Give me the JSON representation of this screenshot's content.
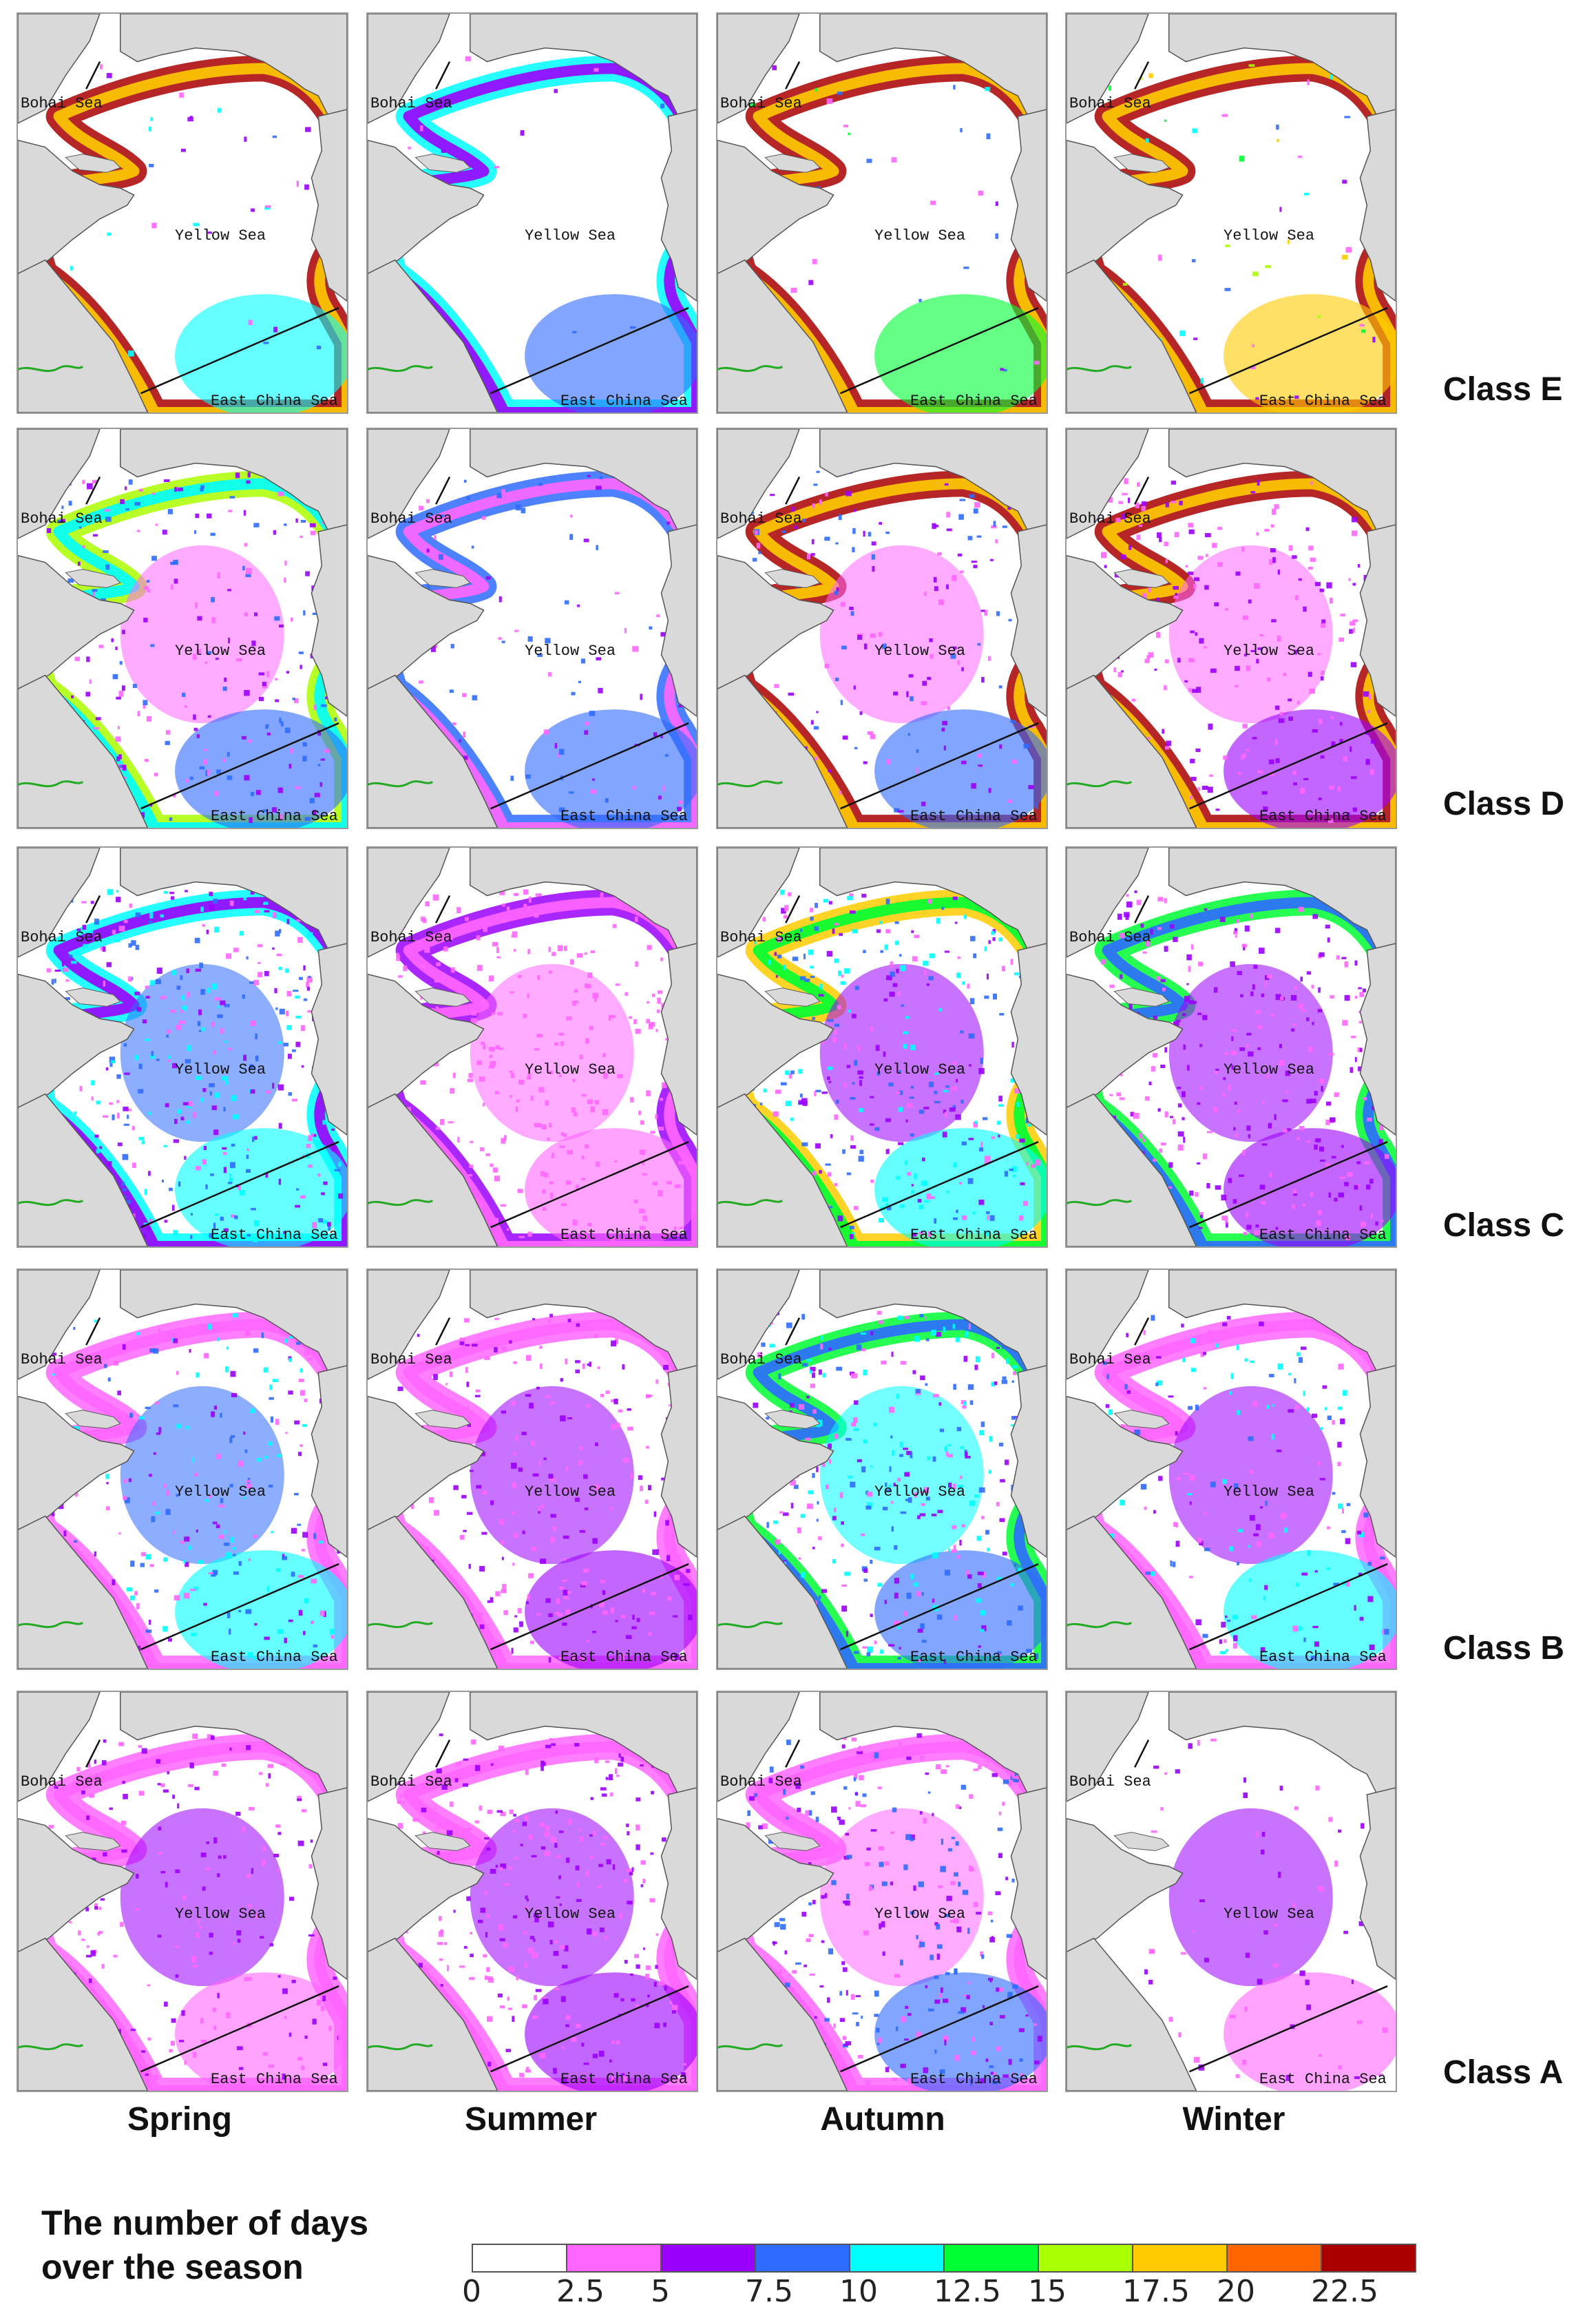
{
  "regions": {
    "bohai": "Bohai Sea",
    "yellow": "Yellow Sea",
    "east_china": "East China Sea"
  },
  "seasons": [
    "Spring",
    "Summer",
    "Autumn",
    "Winter"
  ],
  "classes": [
    "Class E",
    "Class D",
    "Class C",
    "Class B",
    "Class A"
  ],
  "legend": {
    "title_line1": "The number of days",
    "title_line2": "over the season",
    "ticks": [
      "0",
      "2.5",
      "5",
      "7.5",
      "10",
      "12.5",
      "15",
      "17.5",
      "20",
      "22.5"
    ],
    "colors": [
      "#ffffff",
      "#ff66ff",
      "#9b00ff",
      "#2f6bff",
      "#00ffff",
      "#00ff33",
      "#aaff00",
      "#ffcc00",
      "#ff6600",
      "#aa0000"
    ]
  },
  "map_colors": {
    "land": "#d9d9d9",
    "sea": "#ffffff",
    "coast": "#555555",
    "river": "#22aa22",
    "boundary": "#111111"
  }
}
